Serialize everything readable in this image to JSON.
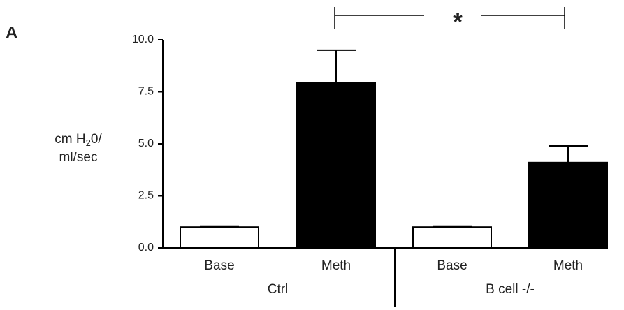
{
  "panel_label": "A",
  "chart_data": {
    "type": "bar",
    "y_label": {
      "line1": [
        "cm H",
        "2",
        "0/"
      ],
      "line2": "ml/sec"
    },
    "categories": [
      "Base",
      "Meth",
      "Base",
      "Meth"
    ],
    "groups": [
      "Ctrl",
      "B cell -/-"
    ],
    "values": [
      1.0,
      7.92,
      1.0,
      4.1
    ],
    "errors": [
      0.05,
      1.58,
      0.05,
      0.8
    ],
    "colors": [
      "#ffffff",
      "#000000",
      "#ffffff",
      "#000000"
    ],
    "ylim": [
      0,
      10
    ],
    "yticks": [
      {
        "value": 0,
        "label": "0.0"
      },
      {
        "value": 2.5,
        "label": "2.5"
      },
      {
        "value": 5,
        "label": "5.0"
      },
      {
        "value": 7.5,
        "label": "7.5"
      },
      {
        "value": 10,
        "label": "10.0"
      }
    ],
    "annotation": "*"
  }
}
